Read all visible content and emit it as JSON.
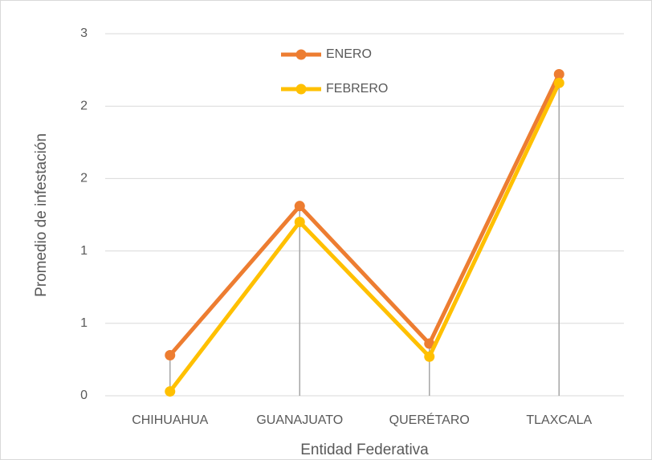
{
  "chart_data": {
    "type": "line",
    "x_label": "Entidad Federativa",
    "y_label": "Promedio de infestación",
    "categories": [
      "CHIHUAHUA",
      "GUANAJUATO",
      "QUERÉTARO",
      "TLAXCALA"
    ],
    "series": [
      {
        "name": "ENERO",
        "color": "#ED7D31",
        "values": [
          0.28,
          1.31,
          0.36,
          2.22
        ]
      },
      {
        "name": "FEBRERO",
        "color": "#FFC000",
        "values": [
          0.03,
          1.2,
          0.27,
          2.16
        ]
      }
    ],
    "ylim": [
      0,
      2.5
    ],
    "yticks": [
      0,
      {
        "value": 0.5,
        "label": "1"
      },
      1,
      {
        "value": 1.5,
        "label": "2"
      },
      2,
      {
        "value": 2.5,
        "label": "3"
      }
    ],
    "grid": true,
    "drop_lines": true,
    "legend": "top"
  }
}
